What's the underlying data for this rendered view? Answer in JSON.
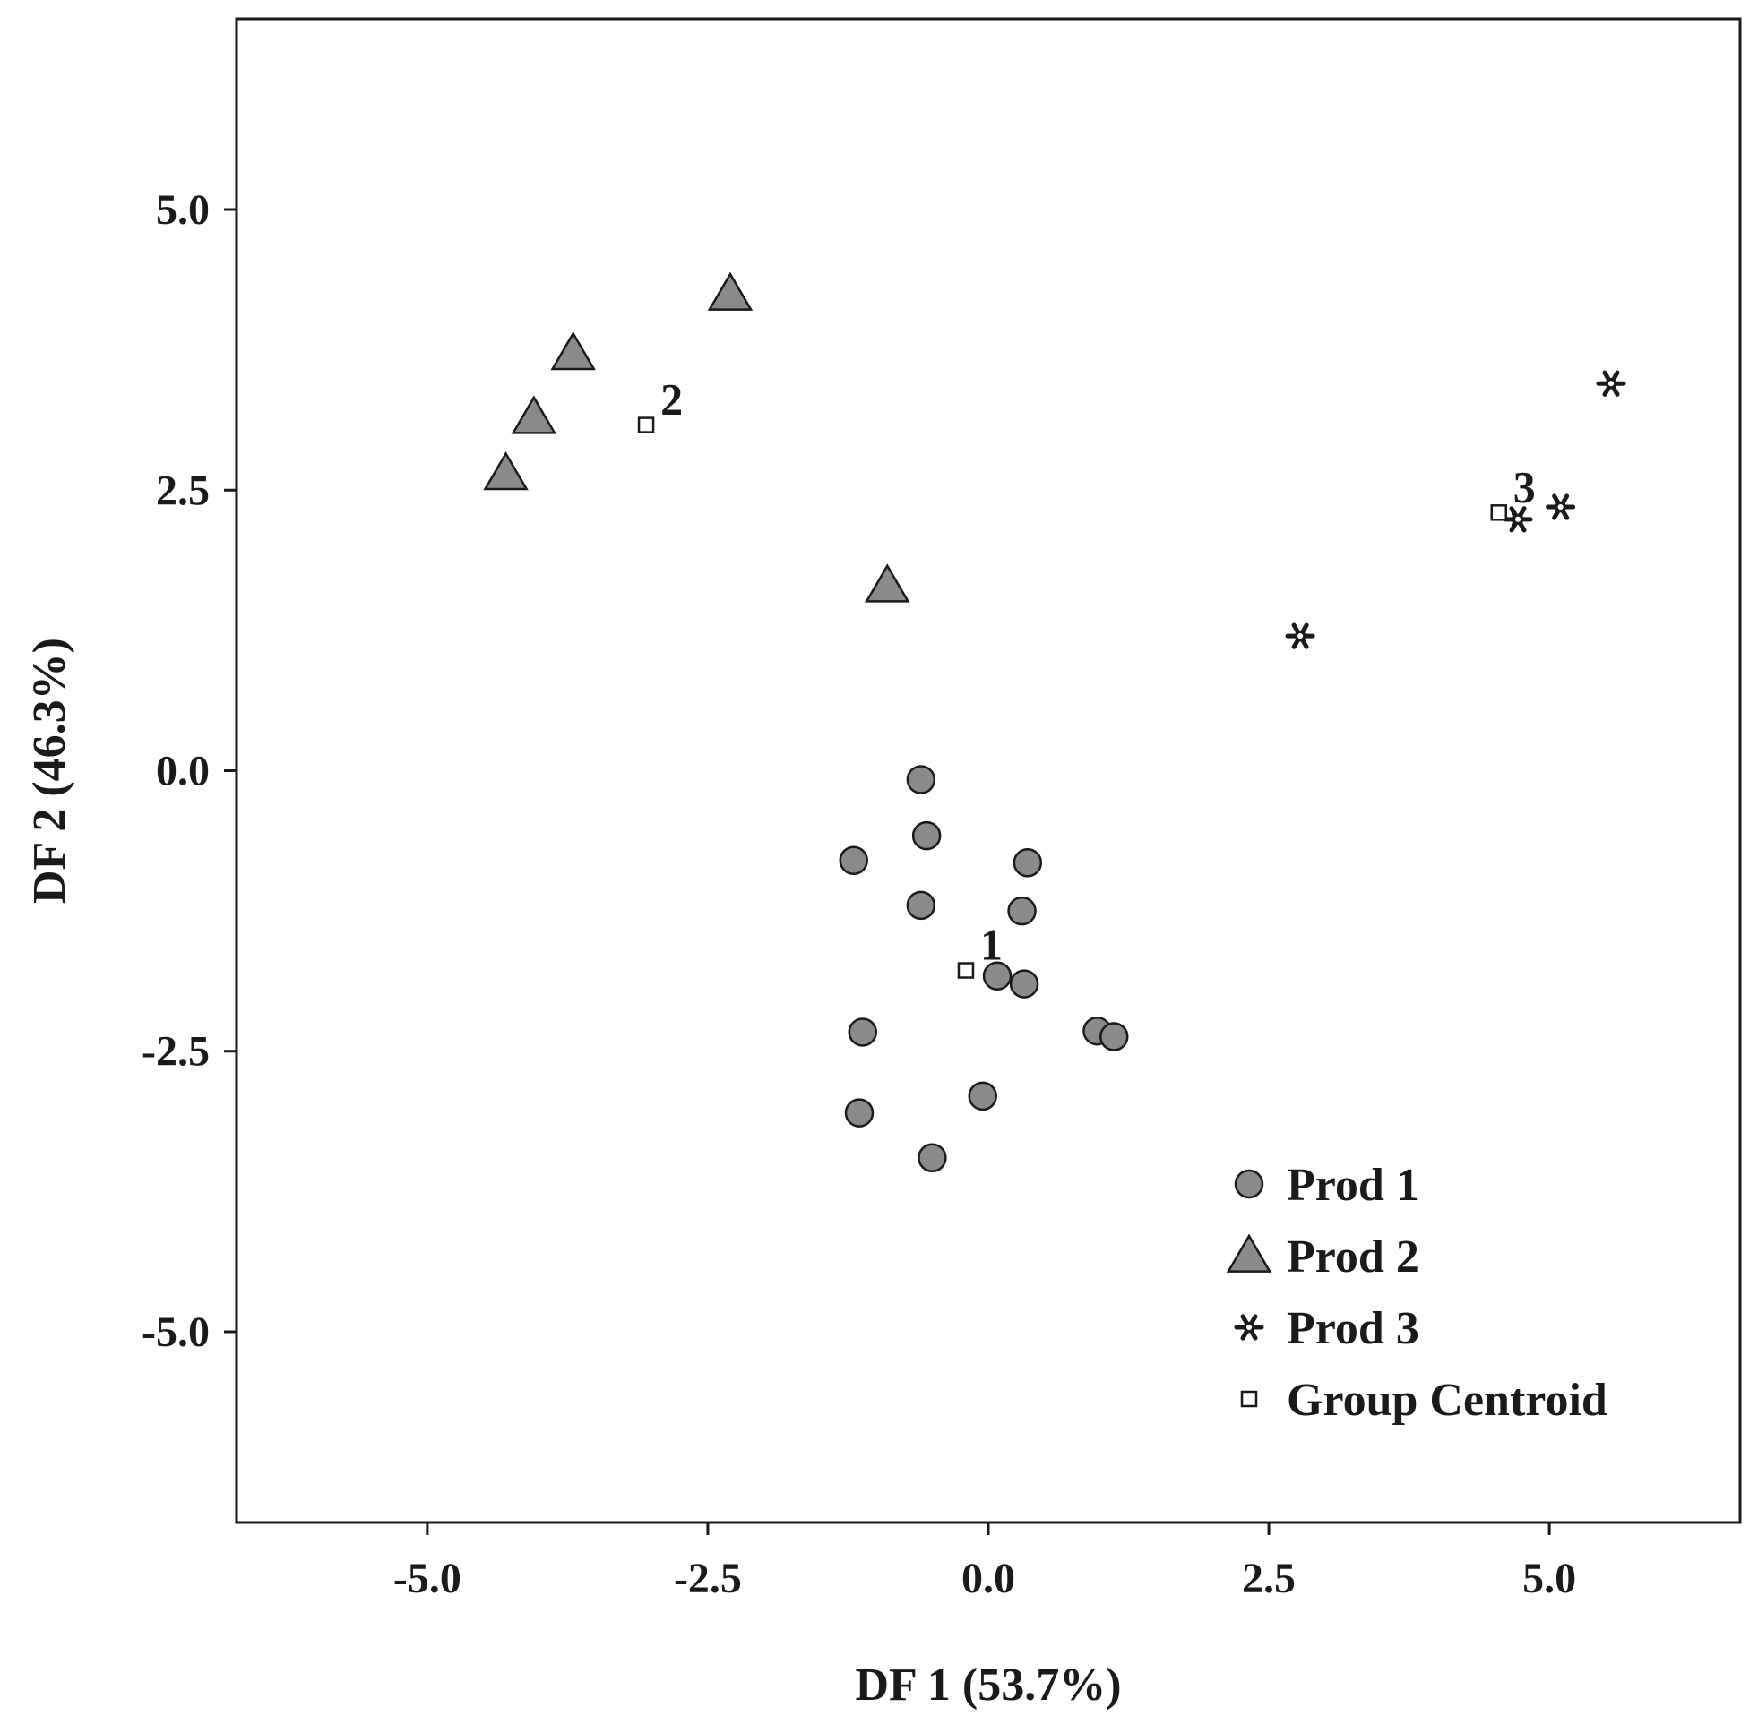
{
  "chart_data": {
    "type": "scatter",
    "title": "",
    "xlabel": "DF 1 (53.7%)",
    "ylabel": "DF 2 (46.3%)",
    "xlim": [
      -6.7,
      6.7
    ],
    "ylim": [
      -6.7,
      6.7
    ],
    "xticks": [
      -5.0,
      -2.5,
      0.0,
      2.5,
      5.0
    ],
    "yticks": [
      -5.0,
      -2.5,
      0.0,
      2.5,
      5.0
    ],
    "xtick_labels": [
      "-5.0",
      "-2.5",
      "0.0",
      "2.5",
      "5.0"
    ],
    "ytick_labels": [
      "-5.0",
      "-2.5",
      "0.0",
      "2.5",
      "5.0"
    ],
    "grid": false,
    "legend_position": "bottom-right",
    "series": [
      {
        "name": "Prod 1",
        "marker": "circle",
        "color": "#8a8a8a",
        "points": [
          {
            "x": -0.6,
            "y": -0.08
          },
          {
            "x": -0.55,
            "y": -0.58
          },
          {
            "x": -1.2,
            "y": -0.8
          },
          {
            "x": 0.35,
            "y": -0.82
          },
          {
            "x": -0.6,
            "y": -1.2
          },
          {
            "x": 0.3,
            "y": -1.25
          },
          {
            "x": 0.08,
            "y": -1.83
          },
          {
            "x": 0.32,
            "y": -1.9
          },
          {
            "x": -1.12,
            "y": -2.33
          },
          {
            "x": 0.97,
            "y": -2.32
          },
          {
            "x": 1.12,
            "y": -2.37
          },
          {
            "x": -0.05,
            "y": -2.9
          },
          {
            "x": -1.15,
            "y": -3.05
          },
          {
            "x": -0.5,
            "y": -3.45
          }
        ]
      },
      {
        "name": "Prod 2",
        "marker": "triangle",
        "color": "#8a8a8a",
        "points": [
          {
            "x": -2.3,
            "y": 4.25
          },
          {
            "x": -3.7,
            "y": 3.72
          },
          {
            "x": -4.05,
            "y": 3.15
          },
          {
            "x": -4.3,
            "y": 2.65
          },
          {
            "x": -0.9,
            "y": 1.65
          }
        ]
      },
      {
        "name": "Prod 3",
        "marker": "star",
        "color": "#1a1a1a",
        "points": [
          {
            "x": 5.55,
            "y": 3.45
          },
          {
            "x": 5.1,
            "y": 2.35
          },
          {
            "x": 4.72,
            "y": 2.24
          },
          {
            "x": 2.78,
            "y": 1.2
          }
        ]
      },
      {
        "name": "Group Centroid",
        "marker": "square",
        "color": "#ffffff",
        "points": [
          {
            "x": -0.2,
            "y": -1.78,
            "label": "1"
          },
          {
            "x": -3.05,
            "y": 3.08,
            "label": "2"
          },
          {
            "x": 4.55,
            "y": 2.3,
            "label": "3"
          }
        ]
      }
    ]
  }
}
